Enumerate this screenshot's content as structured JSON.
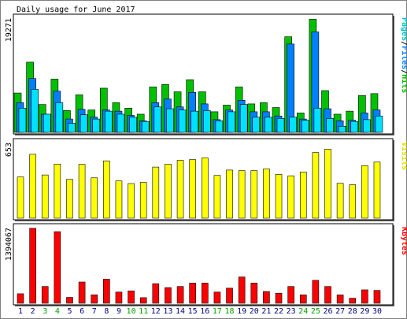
{
  "chart_data": {
    "type": "bar",
    "title": "Daily usage for June 2017",
    "days": [
      "1",
      "2",
      "3",
      "4",
      "5",
      "6",
      "7",
      "8",
      "9",
      "10",
      "11",
      "12",
      "13",
      "14",
      "15",
      "16",
      "17",
      "18",
      "19",
      "20",
      "21",
      "22",
      "23",
      "24",
      "25",
      "26",
      "27",
      "28",
      "29",
      "30"
    ],
    "weekend_days": [
      "3",
      "4",
      "10",
      "11",
      "17",
      "18",
      "24",
      "25"
    ],
    "colors": {
      "hits": "#00c000",
      "files": "#0080ff",
      "pages": "#00e0ff",
      "visits": "#ffff00",
      "kbytes": "#ff0000",
      "weekday_label": "#000080",
      "weekend_label": "#00a000",
      "frame": "#000000",
      "panel_bg": "#ffffff",
      "page_bg": "#ffffff"
    },
    "panels": [
      {
        "id": "hits_files_pages",
        "ymax_label": "19271",
        "ylim": [
          0,
          19271
        ],
        "legend": [
          {
            "text": "Pages",
            "color": "#00c0c0"
          },
          {
            "text": "/",
            "color": "#000000"
          },
          {
            "text": "Files",
            "color": "#0080ff"
          },
          {
            "text": "/",
            "color": "#000000"
          },
          {
            "text": "Hits",
            "color": "#00c000"
          }
        ],
        "series": [
          {
            "name": "Hits",
            "color": "#00c000",
            "values": [
              6500,
              11600,
              4600,
              8800,
              3600,
              6200,
              3700,
              7300,
              4900,
              4000,
              3000,
              7500,
              7900,
              6700,
              8700,
              6700,
              3400,
              4500,
              7500,
              4700,
              4900,
              4100,
              15800,
              3200,
              18700,
              6900,
              3000,
              3500,
              6100,
              6400
            ]
          },
          {
            "name": "Files",
            "color": "#0080ff",
            "values": [
              4900,
              8900,
              3000,
              6800,
              2200,
              3800,
              2500,
              3700,
              3500,
              2800,
              1900,
              4900,
              5500,
              4200,
              6600,
              4700,
              2100,
              3700,
              5300,
              3400,
              3400,
              2700,
              14600,
              2200,
              16600,
              3900,
              1900,
              2000,
              3200,
              3700
            ]
          },
          {
            "name": "Pages",
            "color": "#00e0ff",
            "values": [
              4000,
              7100,
              3000,
              4900,
              1500,
              2900,
              2200,
              3500,
              3000,
              2500,
              1800,
              4200,
              3900,
              3700,
              3500,
              3600,
              1900,
              3400,
              4600,
              2500,
              2500,
              2300,
              2500,
              2000,
              4000,
              2300,
              1000,
              1800,
              2100,
              2700
            ]
          }
        ]
      },
      {
        "id": "visits",
        "ymax_label": "653",
        "ylim": [
          0,
          653
        ],
        "legend": [
          {
            "text": "Visits",
            "color": "#e0e000"
          }
        ],
        "series": [
          {
            "name": "Visits",
            "color": "#ffff00",
            "values": [
              345,
              535,
              362,
              453,
              325,
              451,
              338,
              480,
              312,
              290,
              300,
              428,
              452,
              485,
              491,
              505,
              358,
              403,
              398,
              398,
              412,
              367,
              355,
              387,
              550,
              578,
              292,
              280,
              440,
              470
            ]
          }
        ]
      },
      {
        "id": "kbytes",
        "ymax_label": "1394067",
        "ylim": [
          0,
          1394067
        ],
        "legend": [
          {
            "text": "KBytes",
            "color": "#ff0000"
          }
        ],
        "series": [
          {
            "name": "KBytes",
            "color": "#ff0000",
            "values": [
              170000,
              1340000,
              300000,
              1280000,
              105000,
              380000,
              150000,
              430000,
              200000,
              220000,
              100000,
              350000,
              280000,
              300000,
              360000,
              360000,
              200000,
              270000,
              470000,
              360000,
              210000,
              180000,
              300000,
              150000,
              410000,
              300000,
              150000,
              90000,
              240000,
              230000
            ]
          }
        ]
      }
    ]
  }
}
